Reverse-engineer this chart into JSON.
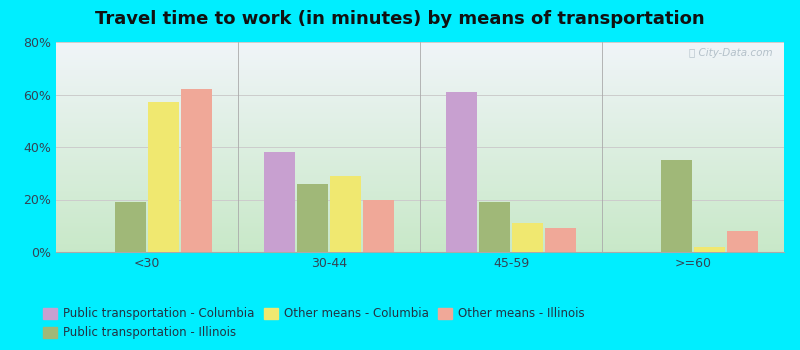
{
  "title": "Travel time to work (in minutes) by means of transportation",
  "categories": [
    "<30",
    "30-44",
    "45-59",
    ">=60"
  ],
  "series": [
    {
      "label": "Public transportation - Columbia",
      "color": "#c8a0d0",
      "values": [
        0,
        38,
        61,
        0
      ]
    },
    {
      "label": "Public transportation - Illinois",
      "color": "#a0b878",
      "values": [
        19,
        26,
        19,
        35
      ]
    },
    {
      "label": "Other means - Columbia",
      "color": "#f0e870",
      "values": [
        57,
        29,
        11,
        2
      ]
    },
    {
      "label": "Other means - Illinois",
      "color": "#f0a898",
      "values": [
        62,
        20,
        9,
        8
      ]
    }
  ],
  "ylim": [
    0,
    80
  ],
  "yticks": [
    0,
    20,
    40,
    60,
    80
  ],
  "ytick_labels": [
    "0%",
    "20%",
    "40%",
    "60%",
    "80%"
  ],
  "background_color": "#00eeff",
  "grid_color": "#cccccc",
  "title_fontsize": 13,
  "tick_fontsize": 9,
  "legend_fontsize": 8.5,
  "bar_width": 0.18,
  "legend_ncol": 3
}
